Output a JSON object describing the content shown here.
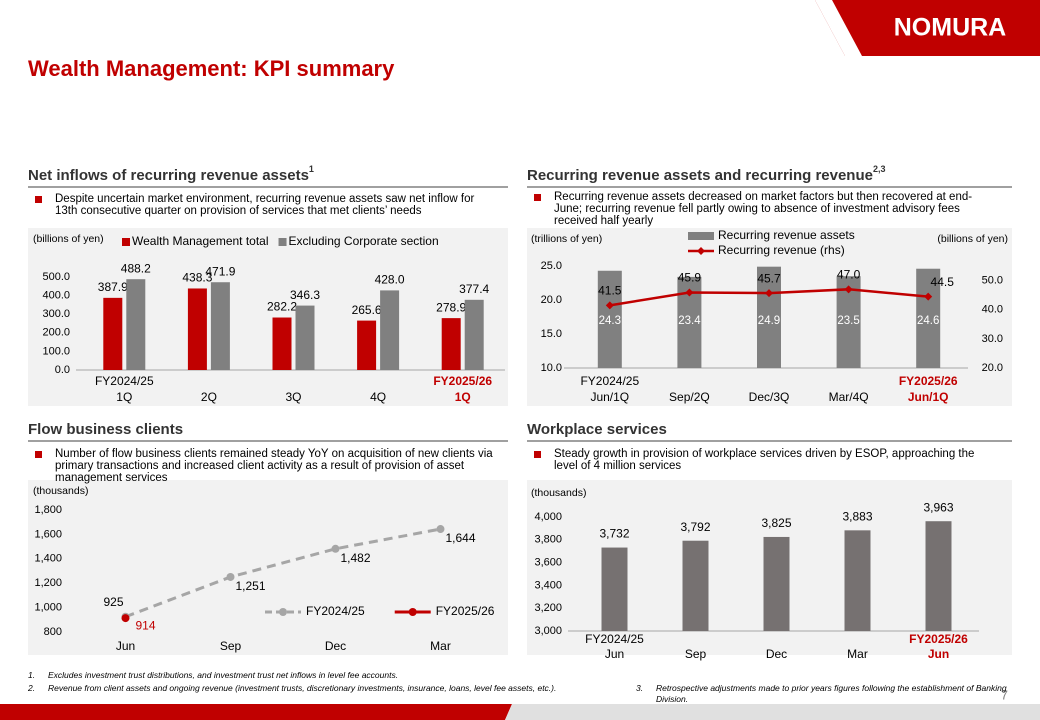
{
  "header": {
    "title": "Wealth Management: KPI summary",
    "logo": "NOMURA"
  },
  "chart_data": [
    {
      "type": "bar",
      "title": "Net inflows of recurring revenue assets",
      "title_sup": "1",
      "subtitle": "Despite uncertain market environment, recurring revenue assets saw net inflow for 13th consecutive quarter on provision of services that met clients’ needs",
      "y_label": "(billions of yen)",
      "categories": [
        [
          "FY2024/25",
          "1Q"
        ],
        [
          "2Q"
        ],
        [
          "3Q"
        ],
        [
          "4Q"
        ],
        [
          "FY2025/26",
          "1Q"
        ]
      ],
      "category_colors": [
        "#000000",
        "#000000",
        "#000000",
        "#000000",
        "#c00000"
      ],
      "series": [
        {
          "name": "Wealth Management total",
          "color": "#c00000",
          "values": [
            387.9,
            438.3,
            282.2,
            265.6,
            278.9
          ],
          "value_labels": [
            "387.9",
            "438.3",
            "282.2",
            "265.6",
            "278.9"
          ]
        },
        {
          "name": "Excluding Corporate section",
          "color": "#808080",
          "values": [
            488.2,
            471.9,
            346.3,
            428.0,
            377.4
          ],
          "value_labels": [
            "488.2",
            "471.9",
            "346.3",
            "428.0",
            "377.4"
          ]
        }
      ],
      "ylim": [
        0,
        500
      ],
      "yticks": [
        {
          "value": 0,
          "label": "0.0"
        },
        {
          "value": 100,
          "label": "100.0"
        },
        {
          "value": 200,
          "label": "200.0"
        },
        {
          "value": 300,
          "label": "300.0"
        },
        {
          "value": 400,
          "label": "400.0"
        },
        {
          "value": 500,
          "label": "500.0"
        }
      ]
    },
    {
      "type": "combo",
      "title": "Recurring revenue assets and recurring revenue",
      "title_sup": "2,3",
      "subtitle": "Recurring revenue assets decreased on market factors but then recovered at end-June; recurring revenue fell partly owing to absence of investment advisory fees received half yearly",
      "y_label": "(trillions of yen)",
      "y2_label": "(billions of yen)",
      "categories": [
        [
          "FY2024/25",
          "Jun/1Q"
        ],
        [
          "Sep/2Q"
        ],
        [
          "Dec/3Q"
        ],
        [
          "Mar/4Q"
        ],
        [
          "FY2025/26",
          "Jun/1Q"
        ]
      ],
      "category_colors": [
        "#000000",
        "#000000",
        "#000000",
        "#000000",
        "#c00000"
      ],
      "series": [
        {
          "name": "Recurring revenue assets",
          "color": "#808080",
          "values": [
            24.3,
            23.4,
            24.9,
            23.5,
            24.6
          ]
        },
        {
          "name": "Recurring revenue (rhs)",
          "color": "#c00000",
          "axis": "y2",
          "values": [
            41.5,
            45.9,
            45.7,
            47.0,
            44.5
          ],
          "value_labels": [
            "41.5",
            "45.9",
            "45.7",
            "47.0",
            "44.5"
          ]
        }
      ],
      "ylim": [
        10,
        25
      ],
      "yticks": [
        {
          "value": 10,
          "label": "10.0"
        },
        {
          "value": 15,
          "label": "15.0"
        },
        {
          "value": 20,
          "label": "20.0"
        },
        {
          "value": 25,
          "label": "25.0"
        }
      ],
      "y2lim": [
        20,
        55
      ],
      "y2ticks": [
        {
          "value": 20,
          "label": "20.0"
        },
        {
          "value": 30,
          "label": "30.0"
        },
        {
          "value": 40,
          "label": "40.0"
        },
        {
          "value": 50,
          "label": "50.0"
        }
      ]
    },
    {
      "type": "line",
      "title": "Flow business clients",
      "subtitle": "Number of flow business clients remained steady YoY on acquisition of new clients via primary transactions and increased client activity as a result of provision of asset management services",
      "y_label": "(thousands)",
      "categories": [
        [
          "Jun"
        ],
        [
          "Sep"
        ],
        [
          "Dec"
        ],
        [
          "Mar"
        ]
      ],
      "series": [
        {
          "name": "FY2024/25",
          "color": "#a6a6a6",
          "dashed": true,
          "values": [
            925,
            1251,
            1482,
            1644
          ],
          "value_labels": [
            "925",
            "1,251",
            "1,482",
            "1,644"
          ]
        },
        {
          "name": "FY2025/26",
          "color": "#c00000",
          "values": [
            914,
            null,
            null,
            null
          ]
        }
      ],
      "ylim": [
        800,
        1800
      ],
      "yticks": [
        800,
        {
          "value": 1000,
          "label": "1,000"
        },
        {
          "value": 1200,
          "label": "1,200"
        },
        {
          "value": 1400,
          "label": "1,400"
        },
        {
          "value": 1600,
          "label": "1,600"
        },
        {
          "value": 1800,
          "label": "1,800"
        }
      ]
    },
    {
      "type": "bar",
      "title": "Workplace services",
      "subtitle": "Steady growth in provision of workplace services driven by ESOP, approaching the level of 4 million services",
      "y_label": "(thousands)",
      "categories": [
        [
          "FY2024/25",
          "Jun"
        ],
        [
          "Sep"
        ],
        [
          "Dec"
        ],
        [
          "Mar"
        ],
        [
          "FY2025/26",
          "Jun"
        ]
      ],
      "category_colors": [
        "#000000",
        "#000000",
        "#000000",
        "#000000",
        "#c00000"
      ],
      "values": [
        3732,
        3792,
        3825,
        3883,
        3963
      ],
      "value_labels": [
        "3,732",
        "3,792",
        "3,825",
        "3,883",
        "3,963"
      ],
      "color": "#767171",
      "ylim": [
        3000,
        4000
      ],
      "yticks": [
        {
          "value": 3000,
          "label": "3,000"
        },
        {
          "value": 3200,
          "label": "3,200"
        },
        {
          "value": 3400,
          "label": "3,400"
        },
        {
          "value": 3600,
          "label": "3,600"
        },
        {
          "value": 3800,
          "label": "3,800"
        },
        {
          "value": 4000,
          "label": "4,000"
        }
      ]
    }
  ],
  "footnotes": [
    {
      "marker": "1.",
      "text": "Excludes investment trust distributions, and investment trust net inflows in level fee accounts."
    },
    {
      "marker": "2.",
      "text": "Revenue from client assets and ongoing revenue (investment trusts, discretionary investments, insurance, loans, level fee assets, etc.)."
    },
    {
      "marker": "3.",
      "text": "Retrospective adjustments made to prior years figures following the establishment of Banking Division."
    }
  ],
  "page_number": 7
}
